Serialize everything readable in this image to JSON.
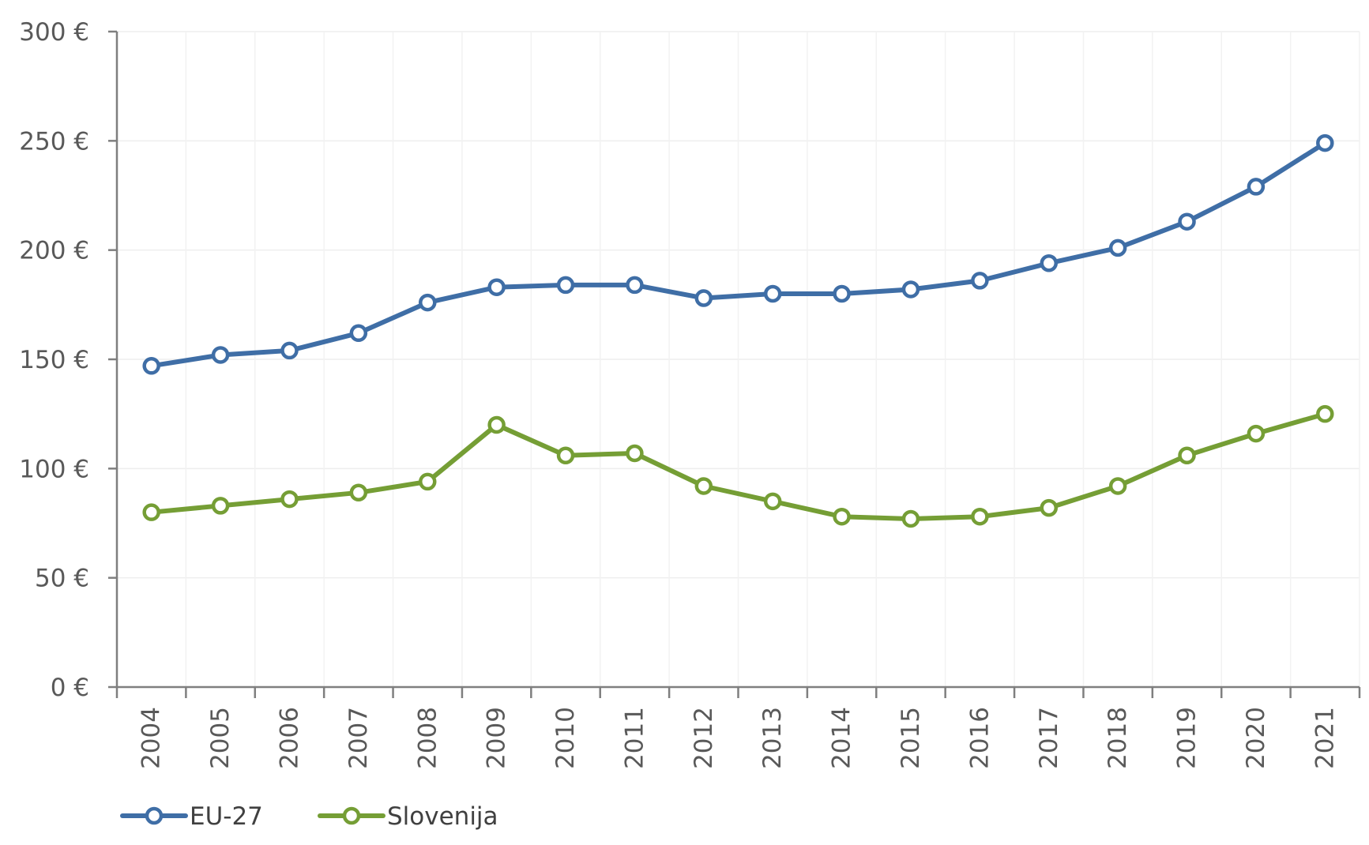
{
  "chart_data": {
    "type": "line",
    "categories": [
      "2004",
      "2005",
      "2006",
      "2007",
      "2008",
      "2009",
      "2010",
      "2011",
      "2012",
      "2013",
      "2014",
      "2015",
      "2016",
      "2017",
      "2018",
      "2019",
      "2020",
      "2021"
    ],
    "series": [
      {
        "name": "EU-27",
        "color": "#3f6ea6",
        "values": [
          147,
          152,
          154,
          162,
          176,
          183,
          184,
          184,
          178,
          180,
          180,
          182,
          186,
          194,
          201,
          213,
          229,
          249
        ]
      },
      {
        "name": "Slovenija",
        "color": "#759e35",
        "values": [
          80,
          83,
          86,
          89,
          94,
          120,
          106,
          107,
          92,
          85,
          78,
          77,
          78,
          82,
          92,
          106,
          116,
          125
        ]
      }
    ],
    "y_ticks": [
      "0 €",
      "50 €",
      "100 €",
      "150 €",
      "200 €",
      "250 €",
      "300 €"
    ],
    "ylim": [
      0,
      300
    ],
    "y_step": 50,
    "grid": true,
    "legend_position": "bottom-left",
    "title": "",
    "xlabel": "",
    "ylabel": ""
  }
}
